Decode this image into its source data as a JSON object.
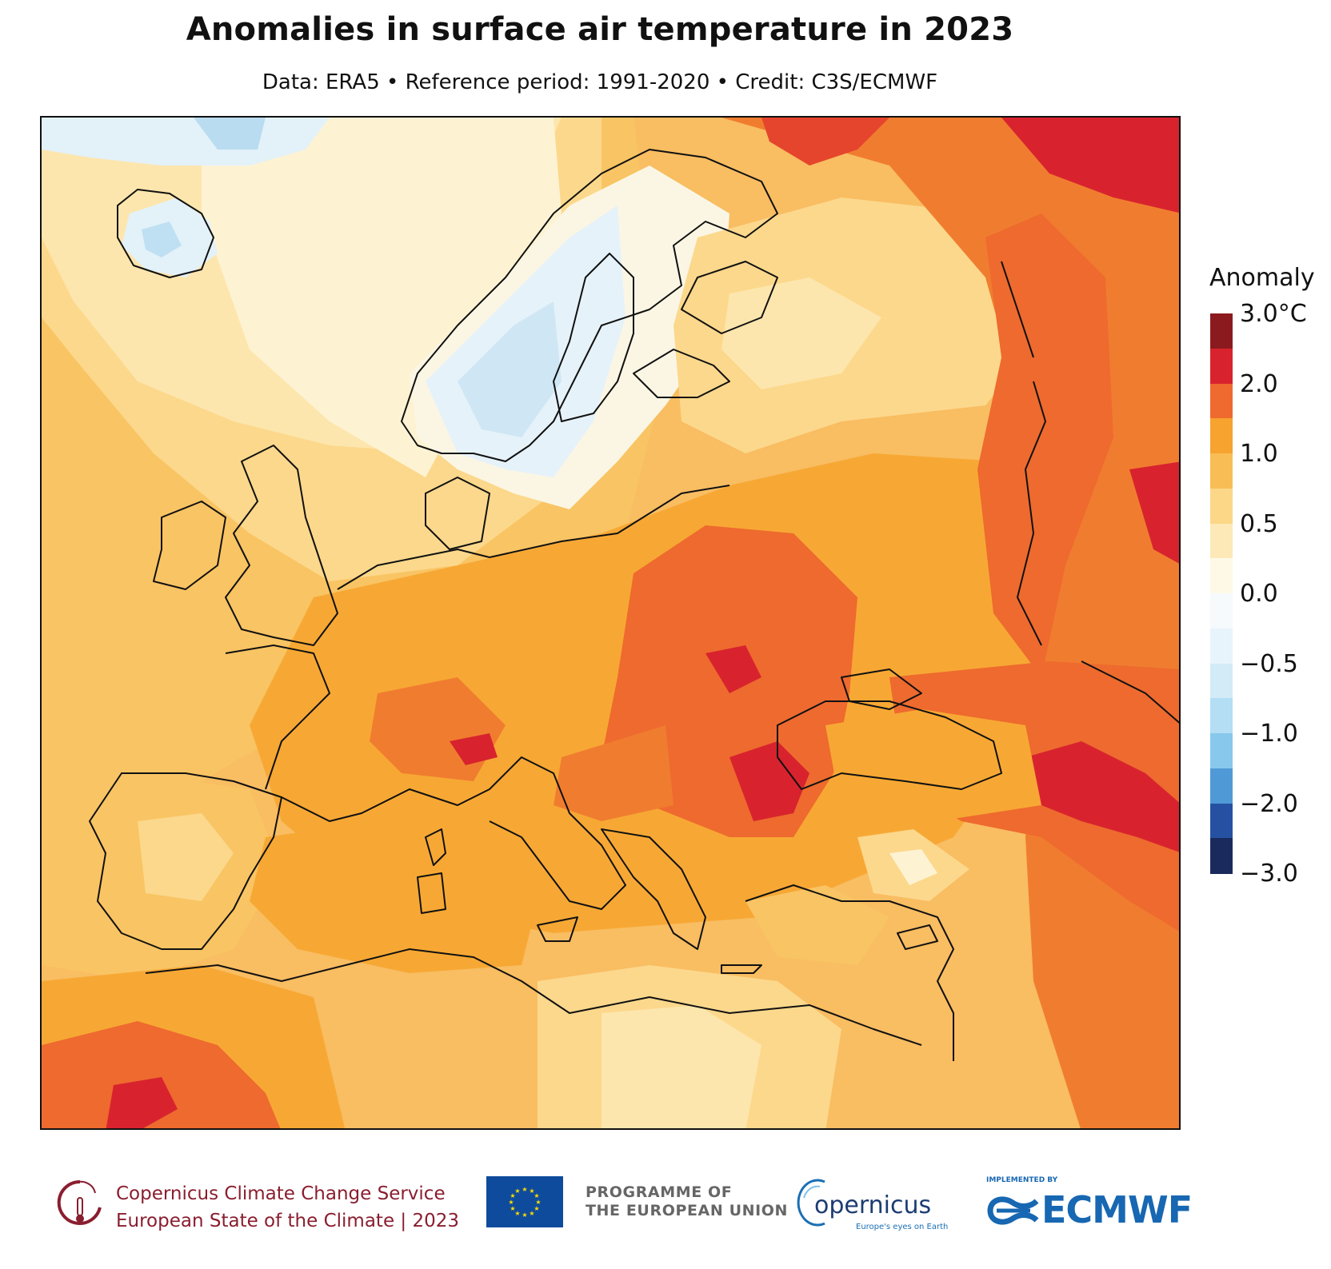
{
  "title": "Anomalies in surface air temperature in 2023",
  "subtitle": "Data: ERA5 • Reference period: 1991-2020 • Credit: C3S/ECMWF",
  "legend": {
    "title": "Anomaly",
    "colors": [
      "#1b2a5c",
      "#2651a3",
      "#4f9ad6",
      "#88c8ec",
      "#b3def4",
      "#d2ebf7",
      "#e8f4fb",
      "#f6fafd",
      "#fef9e7",
      "#fde9b8",
      "#fbd787",
      "#f9bd55",
      "#f6a330",
      "#ee6a2e",
      "#d8232e",
      "#8b1a1e"
    ],
    "ticks": [
      "3.0°C",
      "2.0",
      "1.0",
      "0.5",
      "0.0",
      "−0.5",
      "−1.0",
      "−2.0",
      "−3.0"
    ]
  },
  "footer": {
    "c3s_line1": "Copernicus Climate Change Service",
    "c3s_line2": "European State of the Climate | 2023",
    "eu_line1": "PROGRAMME OF",
    "eu_line2": "THE EUROPEAN UNION",
    "copernicus": "opernicus",
    "copernicus_tagline": "Europe's eyes on Earth",
    "ecmwf_implemented": "IMPLEMENTED BY",
    "ecmwf": "ECMWF"
  }
}
